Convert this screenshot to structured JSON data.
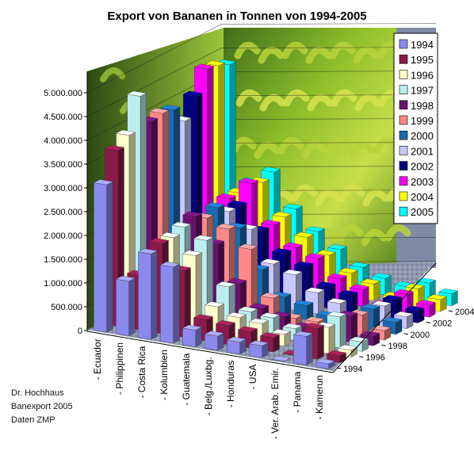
{
  "chart_data": {
    "type": "bar",
    "title": "Export von Bananen in Tonnen von 1994-2005",
    "categories": [
      "- Ecuador",
      "- Philippinen",
      "- Costa Rica",
      "- Kolumbien",
      "- Guatemala",
      "- Belg./Luxbg.",
      "- Honduras",
      "- USA",
      "- Ver. Arab. Emir.",
      "- Panama",
      "- Kamerun"
    ],
    "y_ticks": [
      "0",
      "500.000",
      "1.000.000",
      "1.500.000",
      "2.000.000",
      "2.500.000",
      "3.000.000",
      "3.500.000",
      "4.000.000",
      "4.500.000",
      "5.000.000"
    ],
    "depth_ticks": [
      "1994",
      "1996",
      "1998",
      "2000",
      "2002",
      "2004"
    ],
    "ylim": [
      0,
      5000000
    ],
    "legend_position": "top-right",
    "grid": true,
    "series": [
      {
        "name": "1994",
        "color": "#8a8aee",
        "values": [
          3100000,
          1150000,
          1800000,
          1600000,
          350000,
          300000,
          250000,
          250000,
          5000,
          600000,
          100000
        ]
      },
      {
        "name": "1995",
        "color": "#8b1a4a",
        "values": [
          3700000,
          1150000,
          1900000,
          1400000,
          450000,
          400000,
          350000,
          300000,
          5000,
          650000,
          150000
        ]
      },
      {
        "name": "1996",
        "color": "#ffffcc",
        "values": [
          3900000,
          1150000,
          1900000,
          1600000,
          600000,
          450000,
          400000,
          250000,
          5000,
          550000,
          150000
        ]
      },
      {
        "name": "1997",
        "color": "#bbeeee",
        "values": [
          4600000,
          1200000,
          2000000,
          1800000,
          900000,
          450000,
          400000,
          250000,
          5000,
          650000,
          200000
        ]
      },
      {
        "name": "1998",
        "color": "#6b1070",
        "values": [
          3950000,
          1550000,
          2100000,
          1600000,
          850000,
          400000,
          300000,
          150000,
          10000,
          550000,
          200000
        ]
      },
      {
        "name": "1999",
        "color": "#ff8888",
        "values": [
          4000000,
          1650000,
          1950000,
          1800000,
          1450000,
          500000,
          150000,
          150000,
          10000,
          450000,
          200000
        ]
      },
      {
        "name": "2000",
        "color": "#1a6ab0",
        "values": [
          3950000,
          1600000,
          2050000,
          1700000,
          900000,
          400000,
          300000,
          150000,
          10000,
          450000,
          250000
        ]
      },
      {
        "name": "2001",
        "color": "#c8c8ff",
        "values": [
          3600000,
          1350000,
          1850000,
          1550000,
          900000,
          750000,
          450000,
          300000,
          20000,
          400000,
          250000
        ]
      },
      {
        "name": "2002",
        "color": "#000080",
        "values": [
          4000000,
          1650000,
          1850000,
          1400000,
          1000000,
          800000,
          450000,
          350000,
          50000,
          400000,
          250000
        ]
      },
      {
        "name": "2003",
        "color": "#ff00ff",
        "values": [
          4450000,
          1800000,
          2200000,
          1400000,
          1000000,
          850000,
          500000,
          350000,
          100000,
          400000,
          250000
        ]
      },
      {
        "name": "2004",
        "color": "#ffff00",
        "values": [
          4400000,
          1800000,
          2100000,
          1450000,
          1100000,
          800000,
          500000,
          350000,
          150000,
          400000,
          250000
        ]
      },
      {
        "name": "2005",
        "color": "#00ffff",
        "values": [
          4300000,
          1900000,
          2200000,
          1500000,
          1100000,
          800000,
          500000,
          350000,
          250000,
          400000,
          250000
        ]
      }
    ]
  },
  "credits": {
    "line1": "Dr. Hochhaus",
    "line2": "Banexport 2005",
    "line3": "Daten ZMP"
  }
}
